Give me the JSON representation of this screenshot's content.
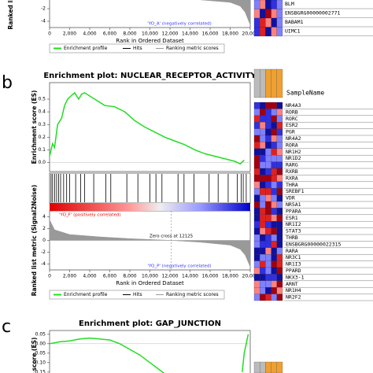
{
  "panels": [
    "b",
    "c"
  ],
  "heatmap_a": {
    "genes": [
      "BLM",
      "ENSBGRG00000002771",
      "BABAM1",
      "UIMC1"
    ]
  },
  "heatmap_b": {
    "header": "SampleName",
    "genes": [
      "NR4A3",
      "RORB",
      "RORC",
      "ESR2",
      "PGR",
      "NR4A2",
      "RORA",
      "NR1H2",
      "NR1D2",
      "RARG",
      "RXRB",
      "RXRA",
      "THRA",
      "SREBF1",
      "VDR",
      "NR5A1",
      "PPARA",
      "ESR1",
      "NR1I2",
      "STAT3",
      "THRB",
      "ENSBGRG00000022315",
      "RARA",
      "NR3C1",
      "NR1I3",
      "PPARD",
      "NKX3-1",
      "ARNT",
      "NR1H4",
      "NR2F2"
    ]
  },
  "chart_data": [
    {
      "type": "area",
      "ylabel": "Ranked list metric",
      "xlabel": "Rank in Ordered Dataset",
      "annotation": "'YO_A' (negatively correlated)",
      "x": [
        0,
        5000,
        10000,
        15000,
        18000,
        19000,
        19500,
        20000
      ],
      "values": [
        -0.2,
        -0.3,
        -0.4,
        -0.6,
        -1,
        -1.6,
        -2.6,
        -4.6
      ],
      "color": "#999999",
      "xlim": [
        0,
        20000
      ],
      "xticks": [
        0,
        {
          "value": 2000,
          "label": "2,000"
        },
        {
          "value": 4000,
          "label": "4,000"
        },
        {
          "value": 6000,
          "label": "6,000"
        },
        {
          "value": 8000,
          "label": "8,000"
        },
        {
          "value": 10000,
          "label": "10,000"
        },
        {
          "value": 12000,
          "label": "12,000"
        },
        {
          "value": 14000,
          "label": "14,000"
        },
        {
          "value": 16000,
          "label": "16,000"
        },
        {
          "value": 18000,
          "label": "18,000"
        },
        {
          "value": 20000,
          "label": "20,000"
        }
      ],
      "ylim": [
        -5,
        4
      ],
      "yticks": [
        -4,
        -2
      ],
      "legend": [
        "Enrichment profile",
        "Hits",
        "Ranking metric scores"
      ]
    },
    {
      "type": "line",
      "title": "Enrichment plot: NUCLEAR_RECEPTOR_ACTIVITY",
      "ylabel": "Enrichment score (ES)",
      "x": [
        0,
        300,
        500,
        800,
        1200,
        1500,
        1800,
        2200,
        2500,
        2900,
        3200,
        3500,
        4500,
        5500,
        6500,
        7500,
        8500,
        9500,
        10500,
        11500,
        12500,
        13500,
        14500,
        15500,
        16500,
        17500,
        18500,
        19000,
        19400
      ],
      "series": [
        {
          "name": "Enrichment profile",
          "color": "#22dd22",
          "values": [
            0.05,
            0.15,
            0.12,
            0.3,
            0.35,
            0.45,
            0.5,
            0.53,
            0.55,
            0.5,
            0.54,
            0.55,
            0.5,
            0.45,
            0.44,
            0.4,
            0.33,
            0.28,
            0.24,
            0.2,
            0.17,
            0.14,
            0.1,
            0.07,
            0.05,
            0.03,
            0.01,
            -0.01,
            0.02
          ]
        }
      ],
      "hits": [
        150,
        300,
        500,
        700,
        900,
        1100,
        1400,
        1700,
        2000,
        2600,
        3100,
        3500,
        4400,
        5600,
        6100,
        7700,
        8800,
        10000,
        10600,
        11200,
        12800,
        13400,
        14400,
        15900,
        16800,
        17800,
        18700,
        19100,
        19300,
        19600
      ],
      "xlim": [
        0,
        20000
      ],
      "ylim": [
        -0.07,
        0.63
      ],
      "yticks": [
        {
          "value": 0,
          "label": "0.0"
        },
        0.1,
        0.2,
        0.3,
        0.4,
        0.5
      ]
    },
    {
      "type": "area",
      "ylabel": "Ranked list metric (Signal2Noise)",
      "xlabel": "Rank in Ordered Dataset",
      "annotations": [
        "'YO_F' (positively correlated)",
        "Zero cross at 12125",
        "'YO_P' (negatively correlated)"
      ],
      "x": [
        0,
        500,
        2000,
        5000,
        8000,
        12125,
        15000,
        18000,
        19000,
        19500,
        20000
      ],
      "values": [
        3.5,
        1.8,
        1,
        0.6,
        0.3,
        0,
        -0.3,
        -0.8,
        -1.5,
        -2.5,
        -4.5
      ],
      "color": "#999999",
      "xlim": [
        0,
        20000
      ],
      "xticks": [
        0,
        {
          "value": 2000,
          "label": "2,000"
        },
        {
          "value": 4000,
          "label": "4,000"
        },
        {
          "value": 6000,
          "label": "6,000"
        },
        {
          "value": 8000,
          "label": "8,000"
        },
        {
          "value": 10000,
          "label": "10,000"
        },
        {
          "value": 12000,
          "label": "12,000"
        },
        {
          "value": 14000,
          "label": "14,000"
        },
        {
          "value": 16000,
          "label": "16,000"
        },
        {
          "value": 18000,
          "label": "18,000"
        },
        {
          "value": 20000,
          "label": "20,000"
        }
      ],
      "ylim": [
        -5,
        5
      ],
      "yticks": [
        -4,
        -2,
        0,
        2,
        4
      ],
      "legend": [
        "Enrichment profile",
        "Hits",
        "Ranking metric scores"
      ]
    },
    {
      "type": "line",
      "title": "Enrichment plot: GAP_JUNCTION",
      "ylabel": "score (ES)",
      "x": [
        0,
        1000,
        2000,
        3000,
        4000,
        5000,
        6000,
        7000,
        8000,
        9000,
        10000,
        11000,
        12000,
        15000,
        19200,
        19400,
        19600,
        19800
      ],
      "series": [
        {
          "name": "Enrichment profile",
          "color": "#22dd22",
          "values": [
            0,
            0.01,
            0.015,
            0.025,
            0.03,
            0.025,
            0.02,
            0,
            -0.03,
            -0.06,
            -0.1,
            -0.14,
            -0.18,
            null,
            -0.15,
            -0.05,
            0,
            0.05
          ]
        }
      ],
      "xlim": [
        0,
        20000
      ],
      "ylim": [
        -0.18,
        0.07
      ],
      "yticks": [
        0.05,
        {
          "value": 0,
          "label": "0.00"
        },
        -0.05,
        {
          "value": -0.1,
          "label": "-0.10"
        },
        -0.15
      ]
    }
  ]
}
